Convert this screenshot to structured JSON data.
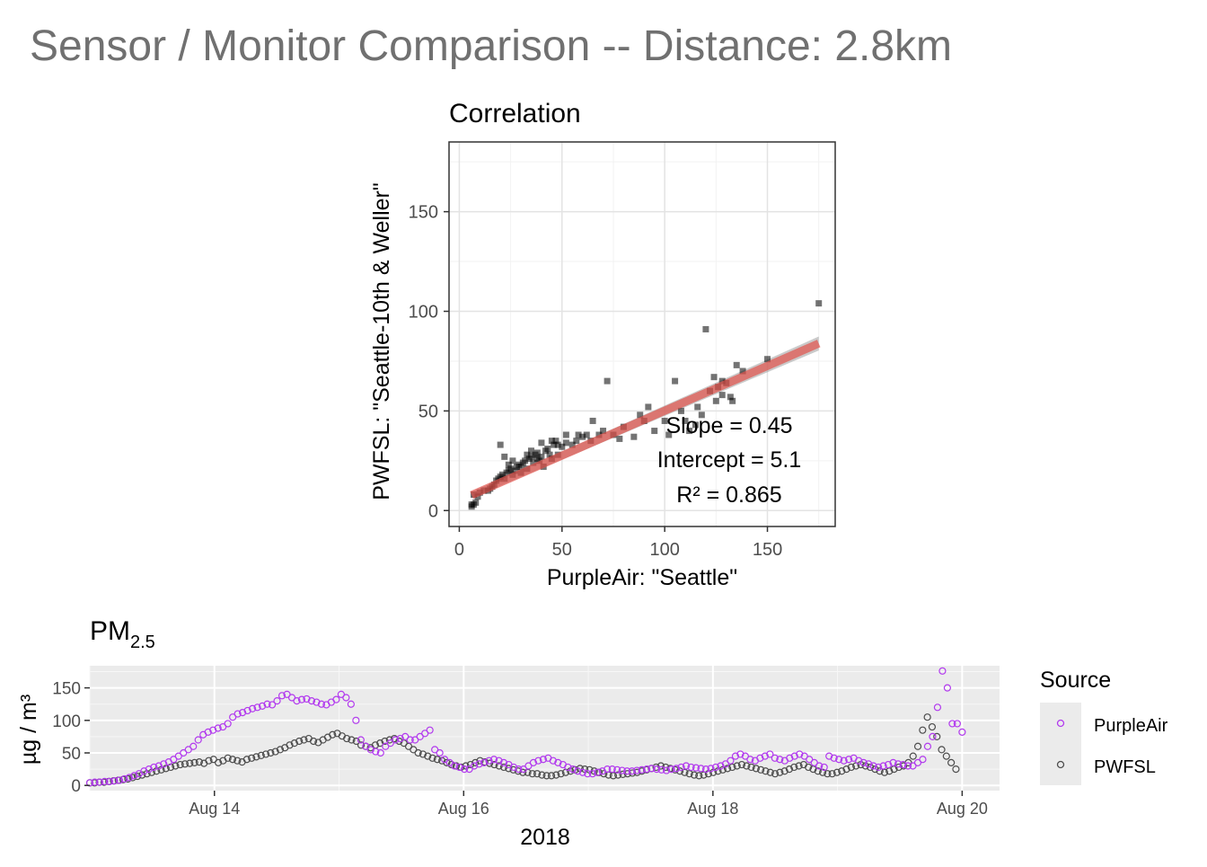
{
  "title": "Sensor / Monitor Comparison -- Distance: 2.8km",
  "colors": {
    "purpleair": "#B23AEE",
    "pwfsl": "#4d4d4d",
    "points": "#000000",
    "fit_line": "#E3534B",
    "fit_band": "#9E9E9E",
    "title_gray": "#707070",
    "panel_gray": "#EBEBEB",
    "grid_light": "#EBEBEB"
  },
  "correlation": {
    "title": "Correlation",
    "xlabel": "PurpleAir: \"Seattle\"",
    "ylabel": "PWFSL: \"Seattle-10th & Weller\"",
    "stats": {
      "slope": "Slope = 0.45",
      "intercept": "Intercept = 5.1",
      "r2": "R² = 0.865"
    }
  },
  "timeseries": {
    "title_main": "PM",
    "title_sub": "2.5",
    "ylabel": "µg / m³",
    "xlabel": "2018",
    "legend": {
      "title": "Source",
      "items": [
        "PurpleAir",
        "PWFSL"
      ]
    }
  },
  "chart_data": [
    {
      "type": "scatter",
      "title": "Correlation",
      "xlabel": "PurpleAir: \"Seattle\"",
      "ylabel": "PWFSL: \"Seattle-10th & Weller\"",
      "xlim": [
        -5,
        183
      ],
      "ylim": [
        -8,
        185
      ],
      "xticks": [
        0,
        50,
        100,
        150
      ],
      "yticks": [
        0,
        50,
        100,
        150
      ],
      "grid": true,
      "fit": {
        "slope": 0.45,
        "intercept": 5.1,
        "r2": 0.865,
        "x_range": [
          6,
          175
        ]
      },
      "points": [
        [
          6,
          3
        ],
        [
          7,
          3
        ],
        [
          6,
          2
        ],
        [
          8,
          4
        ],
        [
          7,
          8
        ],
        [
          9,
          7
        ],
        [
          10,
          9
        ],
        [
          12,
          10
        ],
        [
          14,
          10
        ],
        [
          15,
          11
        ],
        [
          16,
          12
        ],
        [
          17,
          13
        ],
        [
          18,
          15
        ],
        [
          19,
          16
        ],
        [
          20,
          17
        ],
        [
          21,
          18
        ],
        [
          22,
          16
        ],
        [
          23,
          19
        ],
        [
          24,
          20
        ],
        [
          25,
          21
        ],
        [
          26,
          18
        ],
        [
          27,
          20
        ],
        [
          28,
          22
        ],
        [
          29,
          23
        ],
        [
          30,
          19
        ],
        [
          31,
          24
        ],
        [
          32,
          25
        ],
        [
          33,
          21
        ],
        [
          34,
          26
        ],
        [
          35,
          27
        ],
        [
          36,
          24
        ],
        [
          37,
          28
        ],
        [
          38,
          29
        ],
        [
          39,
          25
        ],
        [
          40,
          27
        ],
        [
          41,
          22
        ],
        [
          42,
          30
        ],
        [
          43,
          31
        ],
        [
          44,
          28
        ],
        [
          45,
          26
        ],
        [
          46,
          33
        ],
        [
          47,
          35
        ],
        [
          48,
          28
        ],
        [
          50,
          32
        ],
        [
          52,
          34
        ],
        [
          55,
          33
        ],
        [
          58,
          38
        ],
        [
          60,
          37
        ],
        [
          62,
          38
        ],
        [
          65,
          45
        ],
        [
          68,
          38
        ],
        [
          70,
          40
        ],
        [
          72,
          65
        ],
        [
          75,
          38
        ],
        [
          80,
          42
        ],
        [
          85,
          37
        ],
        [
          90,
          45
        ],
        [
          95,
          40
        ],
        [
          100,
          45
        ],
        [
          102,
          38
        ],
        [
          105,
          65
        ],
        [
          110,
          45
        ],
        [
          112,
          40
        ],
        [
          115,
          43
        ],
        [
          118,
          48
        ],
        [
          120,
          91
        ],
        [
          122,
          60
        ],
        [
          124,
          67
        ],
        [
          125,
          55
        ],
        [
          126,
          62
        ],
        [
          128,
          65
        ],
        [
          130,
          64
        ],
        [
          132,
          57
        ],
        [
          133,
          55
        ],
        [
          135,
          73
        ],
        [
          138,
          70
        ],
        [
          150,
          76
        ],
        [
          175,
          104
        ],
        [
          20,
          33
        ],
        [
          22,
          27
        ],
        [
          24,
          23
        ],
        [
          26,
          25
        ],
        [
          30,
          22
        ],
        [
          33,
          28
        ],
        [
          35,
          30
        ],
        [
          38,
          26
        ],
        [
          40,
          34
        ],
        [
          45,
          35
        ],
        [
          48,
          33
        ],
        [
          52,
          38
        ],
        [
          57,
          35
        ],
        [
          64,
          35
        ],
        [
          78,
          36
        ],
        [
          88,
          48
        ],
        [
          92,
          52
        ],
        [
          108,
          50
        ],
        [
          116,
          52
        ],
        [
          128,
          58
        ]
      ]
    },
    {
      "type": "scatter",
      "title": "PM2.5",
      "xlabel": "2018",
      "ylabel": "µg / m³",
      "x_unit": "days since 2018-08-13 00:00 (hourly points)",
      "xlim": [
        13.0,
        20.3
      ],
      "ylim": [
        -8,
        184
      ],
      "xtick_labels": [
        "Aug 14",
        "Aug 16",
        "Aug 18",
        "Aug 20"
      ],
      "xtick_values": [
        14,
        16,
        18,
        20
      ],
      "yticks": [
        0,
        50,
        100,
        150
      ],
      "grid": true,
      "legend": {
        "title": "Source",
        "position": "right"
      },
      "series": [
        {
          "name": "PurpleAir",
          "t_start": 13.0,
          "t_end": 20.0,
          "values": [
            4,
            5,
            5,
            6,
            6,
            7,
            8,
            10,
            12,
            15,
            18,
            22,
            25,
            28,
            30,
            33,
            36,
            40,
            45,
            50,
            55,
            60,
            70,
            78,
            82,
            85,
            88,
            90,
            95,
            105,
            110,
            112,
            115,
            118,
            120,
            122,
            125,
            124,
            130,
            138,
            140,
            135,
            130,
            132,
            133,
            130,
            128,
            125,
            124,
            128,
            132,
            140,
            135,
            125,
            100,
            70,
            60,
            55,
            52,
            50,
            60,
            65,
            70,
            72,
            75,
            70,
            70,
            75,
            80,
            85,
            55,
            50,
            40,
            35,
            30,
            28,
            25,
            25,
            30,
            33,
            35,
            38,
            40,
            38,
            35,
            32,
            28,
            25,
            25,
            30,
            35,
            38,
            40,
            42,
            38,
            35,
            32,
            28,
            25,
            22,
            20,
            18,
            18,
            20,
            22,
            25,
            25,
            24,
            23,
            22,
            22,
            23,
            24,
            25,
            26,
            25,
            24,
            23,
            25,
            26,
            28,
            30,
            28,
            27,
            26,
            25,
            26,
            28,
            30,
            33,
            38,
            45,
            48,
            45,
            40,
            38,
            42,
            45,
            48,
            42,
            40,
            38,
            42,
            45,
            48,
            45,
            40,
            35,
            30,
            28,
            45,
            42,
            40,
            38,
            40,
            42,
            38,
            35,
            33,
            30,
            28,
            30,
            32,
            35,
            33,
            32,
            30,
            30,
            35,
            40,
            60,
            75,
            120,
            176,
            150,
            95,
            95,
            82
          ]
        },
        {
          "name": "PWFSL",
          "t_start": 13.0,
          "t_end": 19.95,
          "values": [
            4,
            4,
            5,
            5,
            6,
            7,
            8,
            9,
            10,
            12,
            14,
            16,
            18,
            20,
            22,
            24,
            26,
            28,
            30,
            32,
            33,
            34,
            35,
            36,
            34,
            38,
            40,
            35,
            38,
            42,
            40,
            38,
            36,
            40,
            42,
            44,
            46,
            48,
            50,
            52,
            55,
            58,
            62,
            65,
            68,
            70,
            72,
            68,
            66,
            70,
            74,
            78,
            80,
            76,
            72,
            70,
            68,
            62,
            60,
            58,
            62,
            65,
            68,
            70,
            72,
            68,
            65,
            60,
            55,
            50,
            48,
            45,
            42,
            40,
            38,
            35,
            32,
            30,
            28,
            30,
            32,
            35,
            38,
            36,
            34,
            32,
            30,
            28,
            26,
            24,
            22,
            20,
            20,
            18,
            18,
            16,
            15,
            15,
            16,
            18,
            20,
            22,
            24,
            26,
            25,
            24,
            22,
            20,
            18,
            16,
            15,
            16,
            17,
            18,
            19,
            20,
            22,
            24,
            26,
            28,
            30,
            28,
            26,
            24,
            22,
            20,
            18,
            16,
            15,
            16,
            18,
            20,
            22,
            24,
            26,
            28,
            30,
            32,
            30,
            28,
            26,
            24,
            22,
            20,
            18,
            20,
            22,
            25,
            28,
            30,
            32,
            28,
            25,
            22,
            20,
            18,
            18,
            20,
            22,
            25,
            28,
            30,
            32,
            30,
            28,
            25,
            22,
            20,
            22,
            25,
            28,
            30,
            35,
            45,
            60,
            85,
            105,
            90,
            75,
            55,
            45,
            35,
            25
          ]
        }
      ]
    }
  ]
}
